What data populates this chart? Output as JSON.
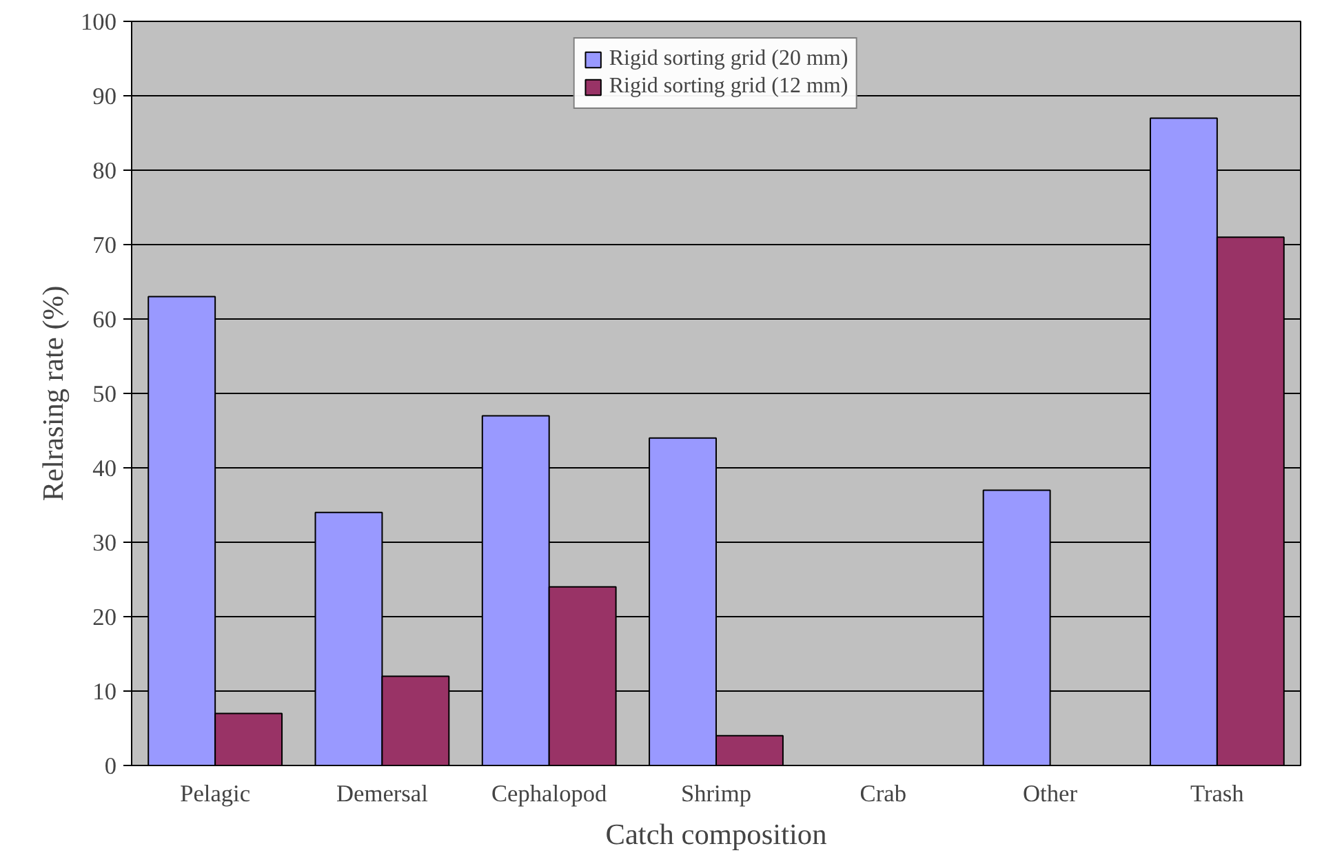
{
  "chart_data": {
    "type": "bar",
    "xlabel": "Catch composition",
    "ylabel": "Relrasing rate (%)",
    "categories": [
      "Pelagic",
      "Demersal",
      "Cephalopod",
      "Shrimp",
      "Crab",
      "Other",
      "Trash"
    ],
    "series": [
      {
        "name": "Rigid sorting grid (20 mm)",
        "color": "#9999ff",
        "values": [
          63,
          34,
          47,
          44,
          0,
          37,
          87
        ]
      },
      {
        "name": "Rigid sorting grid (12 mm)",
        "color": "#993366",
        "values": [
          7,
          12,
          24,
          4,
          0,
          0,
          71
        ]
      }
    ],
    "ylim": [
      0,
      100
    ],
    "yticks": [
      0,
      10,
      20,
      30,
      40,
      50,
      60,
      70,
      80,
      90,
      100
    ],
    "grid": "y",
    "legend": "top"
  }
}
